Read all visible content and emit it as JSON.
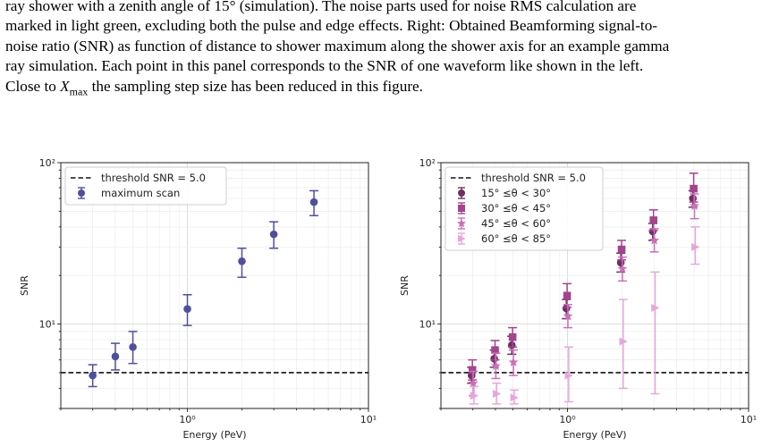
{
  "caption": {
    "line1": "ray shower with a zenith angle of 15° (simulation). The noise parts used for noise RMS calculation are",
    "line2": "marked in light green, excluding both the pulse and edge effects. Right: Obtained Beamforming signal-to-",
    "line3": "noise ratio (SNR) as function of distance to shower maximum along the shower axis for an example gamma",
    "line4": "ray simulation. Each point in this panel corresponds to the SNR of one waveform like shown in the left.",
    "line5_pre": "Close to ",
    "line5_var": "X",
    "line5_sub": "max",
    "line5_post": " the sampling step size has been reduced in this figure."
  },
  "chart_data": [
    {
      "type": "scatter",
      "xlabel": "Energy (PeV)",
      "ylabel": "SNR",
      "xscale": "log",
      "yscale": "log",
      "xlim": [
        0.2,
        10
      ],
      "ylim": [
        3.0,
        100
      ],
      "xticks": [
        {
          "value": 1,
          "label": "10⁰"
        },
        {
          "value": 10,
          "label": "10¹"
        }
      ],
      "yticks": [
        {
          "value": 10,
          "label": "10¹"
        },
        {
          "value": 100,
          "label": "10²"
        }
      ],
      "grid": true,
      "legend_position": "top-left",
      "threshold": {
        "value": 5.0,
        "label": "threshold SNR = 5.0",
        "color": "#111111"
      },
      "series": [
        {
          "name": "maximum scan",
          "marker": "circle",
          "color": "#4f4f9e",
          "points": [
            {
              "x": 0.3,
              "y": 4.8,
              "lo": 4.1,
              "hi": 5.6
            },
            {
              "x": 0.4,
              "y": 6.3,
              "lo": 5.2,
              "hi": 7.6
            },
            {
              "x": 0.5,
              "y": 7.2,
              "lo": 5.7,
              "hi": 9.0
            },
            {
              "x": 1.0,
              "y": 12.4,
              "lo": 9.8,
              "hi": 15.2
            },
            {
              "x": 2.0,
              "y": 24.5,
              "lo": 19.5,
              "hi": 29.5
            },
            {
              "x": 3.0,
              "y": 36.0,
              "lo": 29.5,
              "hi": 43.0
            },
            {
              "x": 5.0,
              "y": 57.0,
              "lo": 47.0,
              "hi": 67.0
            }
          ]
        }
      ]
    },
    {
      "type": "scatter",
      "xlabel": "Energy (PeV)",
      "ylabel": "SNR",
      "xscale": "log",
      "yscale": "log",
      "xlim": [
        0.2,
        10
      ],
      "ylim": [
        3.0,
        100
      ],
      "xticks": [
        {
          "value": 1,
          "label": "10⁰"
        },
        {
          "value": 10,
          "label": "10¹"
        }
      ],
      "yticks": [
        {
          "value": 10,
          "label": "10¹"
        },
        {
          "value": 100,
          "label": "10²"
        }
      ],
      "grid": true,
      "legend_position": "top-left",
      "threshold": {
        "value": 5.0,
        "label": "threshold SNR = 5.0",
        "color": "#111111"
      },
      "series": [
        {
          "name": "15° ≤θ < 30°",
          "marker": "circle",
          "color": "#6f2f62",
          "points": [
            {
              "x": 0.3,
              "y": 4.8,
              "lo": 4.3,
              "hi": 5.4
            },
            {
              "x": 0.4,
              "y": 6.1,
              "lo": 5.4,
              "hi": 6.9
            },
            {
              "x": 0.5,
              "y": 7.4,
              "lo": 6.5,
              "hi": 8.4
            },
            {
              "x": 1.0,
              "y": 12.5,
              "lo": 10.8,
              "hi": 14.2
            },
            {
              "x": 2.0,
              "y": 24.0,
              "lo": 21.0,
              "hi": 27.5
            },
            {
              "x": 3.0,
              "y": 37.5,
              "lo": 33.0,
              "hi": 42.0
            },
            {
              "x": 5.0,
              "y": 60.0,
              "lo": 53.0,
              "hi": 67.0
            }
          ]
        },
        {
          "name": "30° ≤θ < 45°",
          "marker": "square",
          "color": "#a3448e",
          "points": [
            {
              "x": 0.3,
              "y": 5.2,
              "lo": 4.5,
              "hi": 6.0
            },
            {
              "x": 0.4,
              "y": 6.9,
              "lo": 6.0,
              "hi": 7.9
            },
            {
              "x": 0.5,
              "y": 8.3,
              "lo": 7.2,
              "hi": 9.5
            },
            {
              "x": 1.0,
              "y": 15.0,
              "lo": 12.7,
              "hi": 17.8
            },
            {
              "x": 2.0,
              "y": 29.0,
              "lo": 25.0,
              "hi": 33.0
            },
            {
              "x": 3.0,
              "y": 44.0,
              "lo": 38.0,
              "hi": 51.0
            },
            {
              "x": 5.0,
              "y": 69.0,
              "lo": 57.0,
              "hi": 86.0
            }
          ]
        },
        {
          "name": "45° ≤θ < 60°",
          "marker": "star",
          "color": "#c870b8",
          "points": [
            {
              "x": 0.3,
              "y": 4.3,
              "lo": 3.6,
              "hi": 5.1
            },
            {
              "x": 0.4,
              "y": 5.5,
              "lo": 4.6,
              "hi": 6.6
            },
            {
              "x": 0.5,
              "y": 5.8,
              "lo": 4.8,
              "hi": 6.9
            },
            {
              "x": 1.0,
              "y": 11.2,
              "lo": 9.5,
              "hi": 13.2
            },
            {
              "x": 2.0,
              "y": 22.0,
              "lo": 18.5,
              "hi": 26.0
            },
            {
              "x": 3.0,
              "y": 33.0,
              "lo": 28.0,
              "hi": 39.0
            },
            {
              "x": 5.0,
              "y": 54.0,
              "lo": 45.0,
              "hi": 64.0
            }
          ]
        },
        {
          "name": "60° ≤θ < 85°",
          "marker": "triangle-right",
          "color": "#e6a6db",
          "points": [
            {
              "x": 0.3,
              "y": 3.6,
              "lo": 3.2,
              "hi": 4.1
            },
            {
              "x": 0.4,
              "y": 3.7,
              "lo": 3.2,
              "hi": 4.3
            },
            {
              "x": 0.5,
              "y": 3.5,
              "lo": 3.2,
              "hi": 3.9
            },
            {
              "x": 1.0,
              "y": 4.8,
              "lo": 3.3,
              "hi": 7.2
            },
            {
              "x": 2.0,
              "y": 7.8,
              "lo": 4.0,
              "hi": 14.2
            },
            {
              "x": 3.0,
              "y": 12.6,
              "lo": 3.7,
              "hi": 21.0
            },
            {
              "x": 5.0,
              "y": 30.0,
              "lo": 23.5,
              "hi": 40.0
            }
          ]
        }
      ]
    }
  ]
}
